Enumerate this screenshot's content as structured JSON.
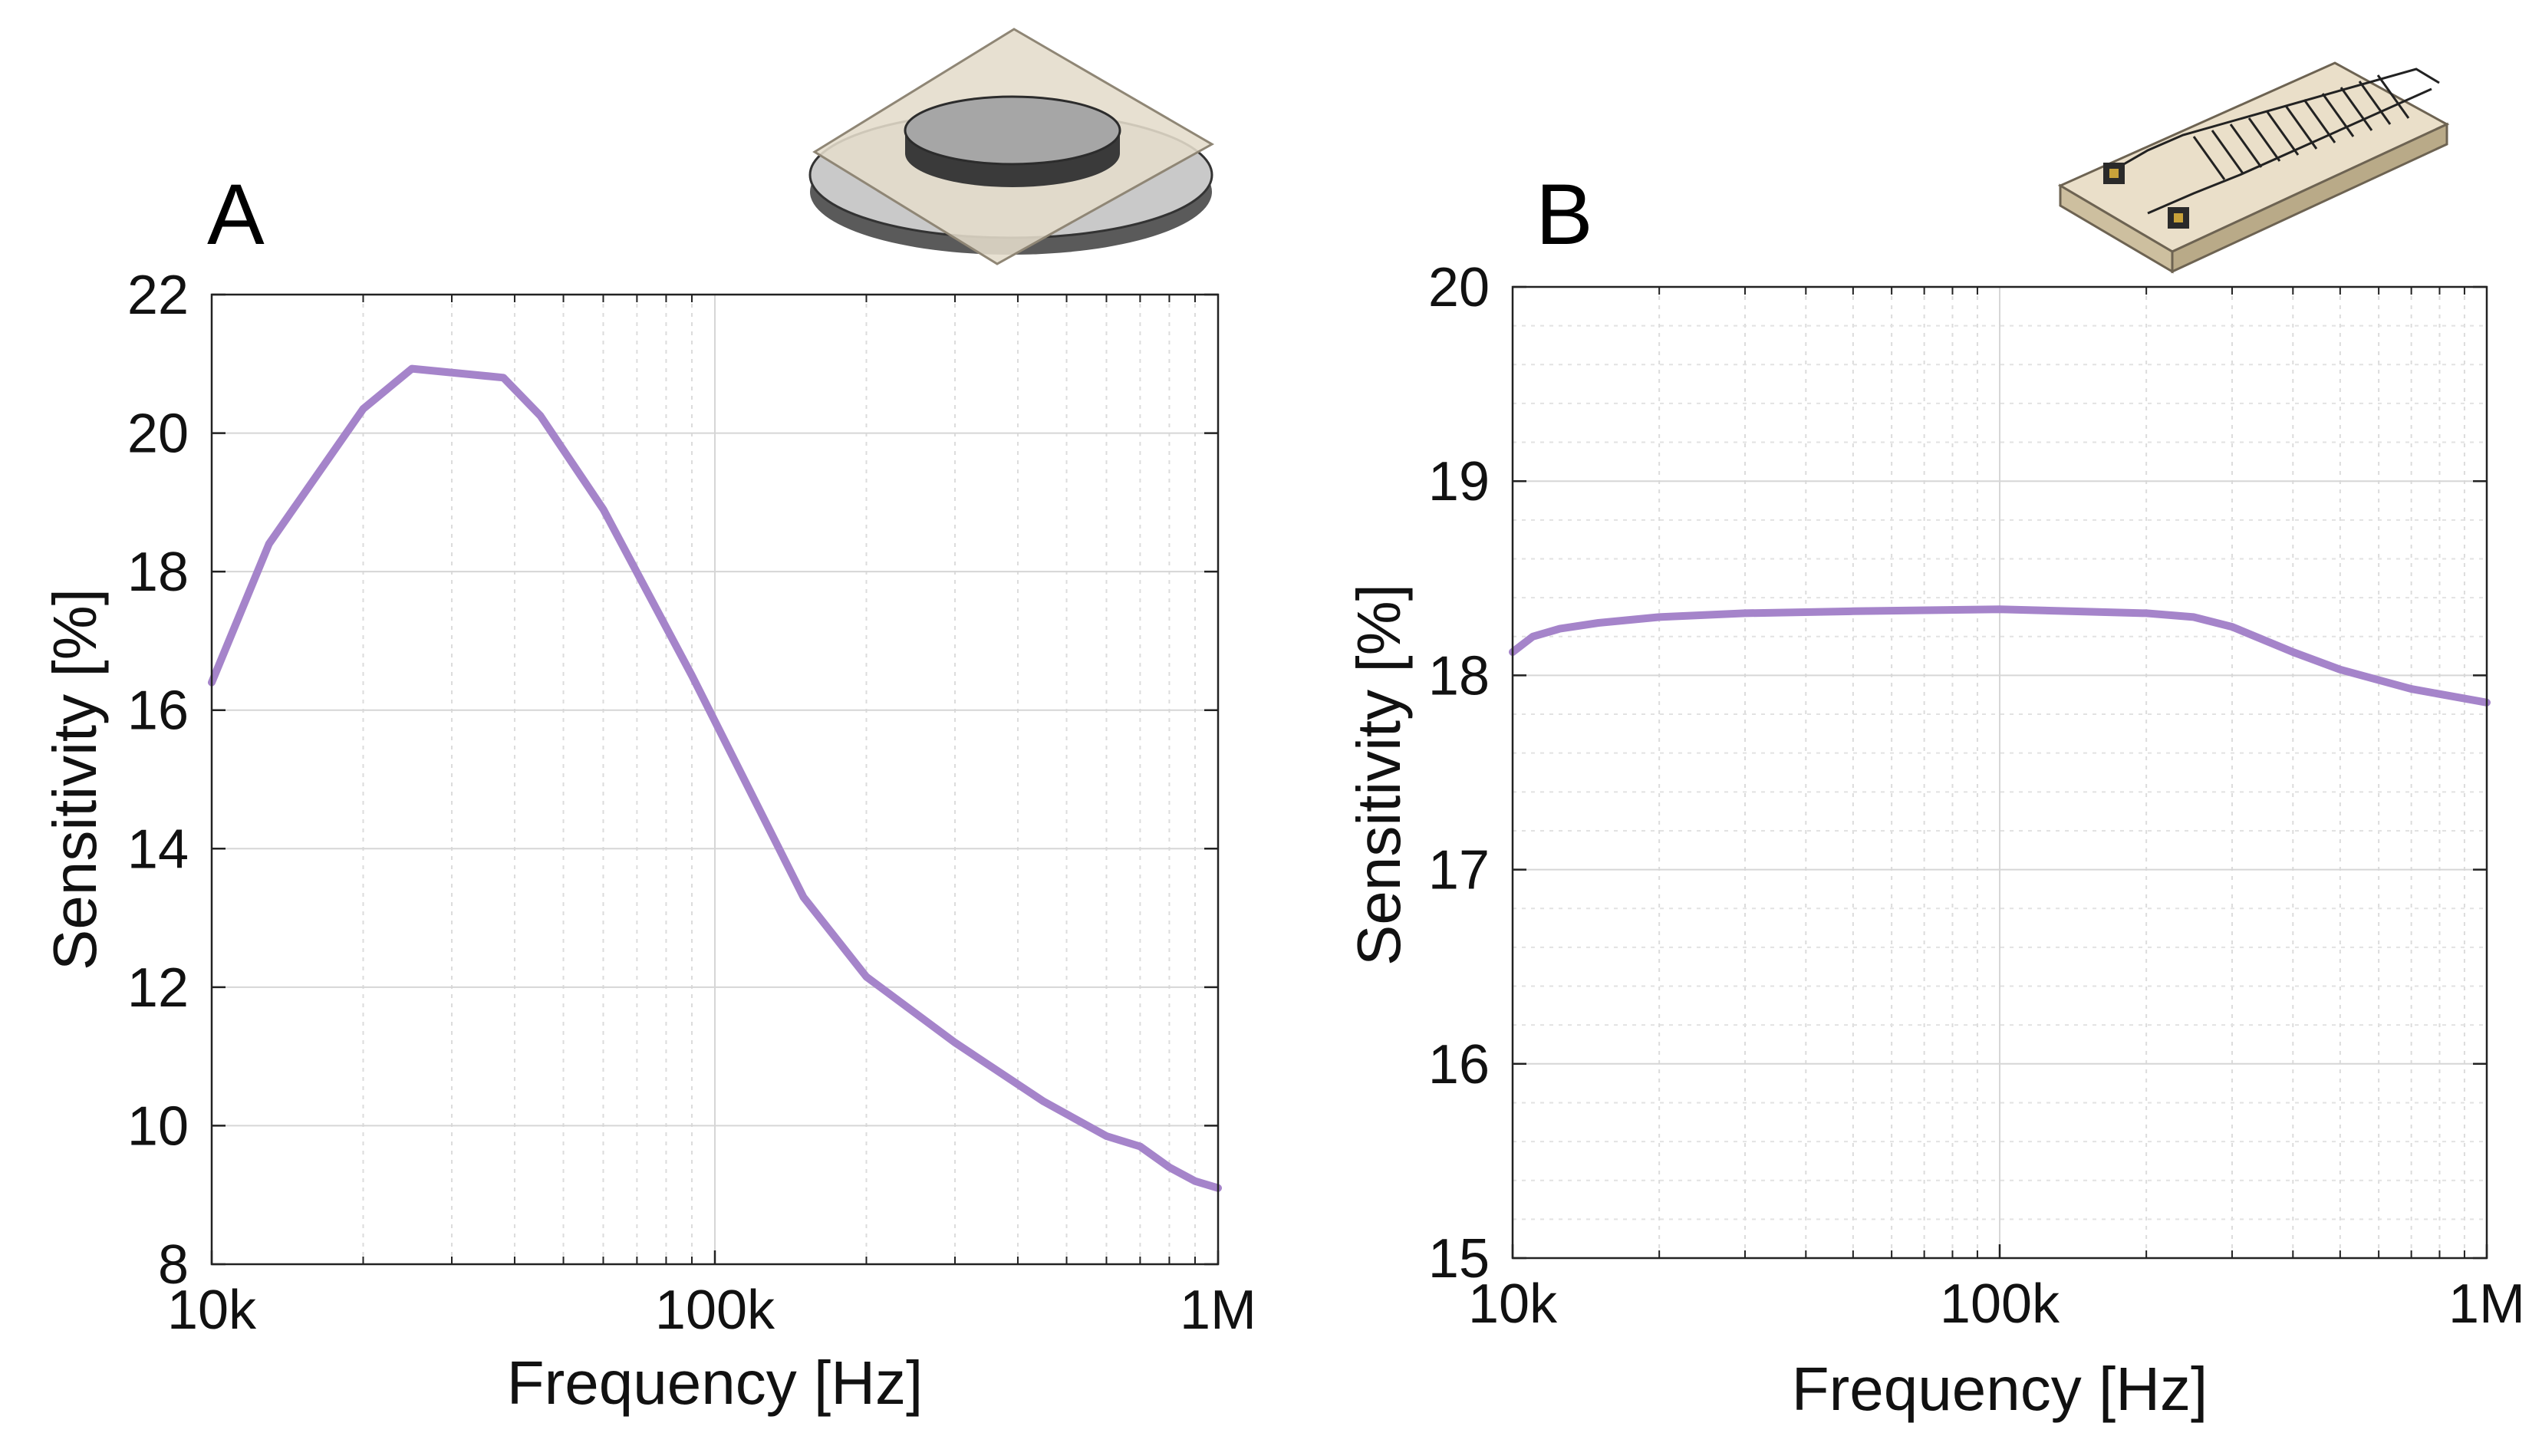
{
  "chart_data": [
    {
      "type": "line",
      "panel_label": "A",
      "xlabel": "Frequency [Hz]",
      "ylabel": "Sensitivity [%]",
      "xscale": "log",
      "xlim": [
        10000,
        1000000
      ],
      "ylim": [
        8,
        22
      ],
      "x_ticks": [
        10000,
        100000,
        1000000
      ],
      "x_tick_labels": [
        "10k",
        "100k",
        "1M"
      ],
      "y_ticks": [
        8,
        10,
        12,
        14,
        16,
        18,
        20,
        22
      ],
      "y_tick_labels": [
        "8",
        "10",
        "12",
        "14",
        "16",
        "18",
        "20",
        "22"
      ],
      "grid": true,
      "line_color": "#A584CA",
      "series": [
        {
          "name": "Sensitivity",
          "x": [
            10000,
            13000,
            20000,
            25000,
            38000,
            45000,
            60000,
            90000,
            150000,
            200000,
            300000,
            450000,
            600000,
            700000,
            800000,
            900000,
            1000000
          ],
          "y": [
            16.4,
            18.4,
            20.35,
            20.93,
            20.8,
            20.25,
            18.9,
            16.5,
            13.3,
            12.15,
            11.2,
            10.35,
            9.85,
            9.7,
            9.4,
            9.2,
            9.1
          ]
        }
      ],
      "icon": "piezo-disc-sensor-icon"
    },
    {
      "type": "line",
      "panel_label": "B",
      "xlabel": "Frequency [Hz]",
      "ylabel": "Sensitivity [%]",
      "xscale": "log",
      "xlim": [
        10000,
        1000000
      ],
      "ylim": [
        15,
        20
      ],
      "x_ticks": [
        10000,
        100000,
        1000000
      ],
      "x_tick_labels": [
        "10k",
        "100k",
        "1M"
      ],
      "y_ticks": [
        15,
        16,
        17,
        18,
        19,
        20
      ],
      "y_tick_labels": [
        "15",
        "16",
        "17",
        "18",
        "19",
        "20"
      ],
      "grid": true,
      "line_color": "#A584CA",
      "series": [
        {
          "name": "Sensitivity",
          "x": [
            10000,
            11000,
            12500,
            15000,
            20000,
            30000,
            50000,
            100000,
            200000,
            250000,
            300000,
            400000,
            500000,
            700000,
            1000000
          ],
          "y": [
            18.12,
            18.2,
            18.24,
            18.27,
            18.3,
            18.32,
            18.33,
            18.34,
            18.32,
            18.3,
            18.25,
            18.12,
            18.03,
            17.93,
            17.86
          ]
        }
      ],
      "icon": "interdigitated-electrode-sensor-icon"
    }
  ]
}
